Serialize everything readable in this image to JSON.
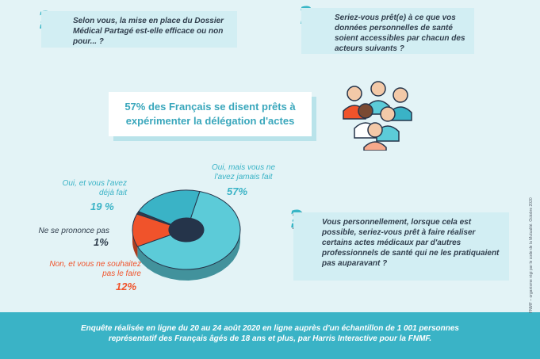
{
  "questions": {
    "q1": "Selon vous, la mise en place du Dossier Médical Partagé est-elle efficace ou non pour... ?",
    "q2": "Seriez-vous prêt(e) à ce que vos données personnelles de santé soient accessibles par chacun des acteurs suivants ?",
    "q3": "Vous personnellement, lorsque cela est possible, seriez-vous prêt à faire réaliser certains actes médicaux par d'autres professionnels de santé qui ne les pratiquaient pas auparavant ?"
  },
  "headline": "57% des Français se disent prêts à expérimenter la délégation d'actes",
  "chart_data": {
    "type": "pie",
    "style": "3d-donut",
    "slices": [
      {
        "label": "Oui, mais vous ne l'avez jamais fait",
        "value": 57,
        "display": "57%",
        "color": "#5ccbd8"
      },
      {
        "label": "Non, et vous ne souhaitez pas le faire",
        "value": 12,
        "display": "12%",
        "color": "#f0532b"
      },
      {
        "label": "Ne se prononce pas",
        "value": 1,
        "display": "1%",
        "color": "#2f3d4c"
      },
      {
        "label": "Oui, et vous l'avez déjà fait",
        "value": 19,
        "display": "19 %",
        "color": "#3ab3c6"
      }
    ]
  },
  "footer": "Enquête réalisée en ligne du 20 au 24 août 2020 en ligne auprès d'un échantillon de 1 001 personnes représentatif des Français âgés de 18 ans et plus, par Harris Interactive pour la FNMF.",
  "credit": "FNMF – organisme régi par le code de la Mutualité. Octobre 2020"
}
